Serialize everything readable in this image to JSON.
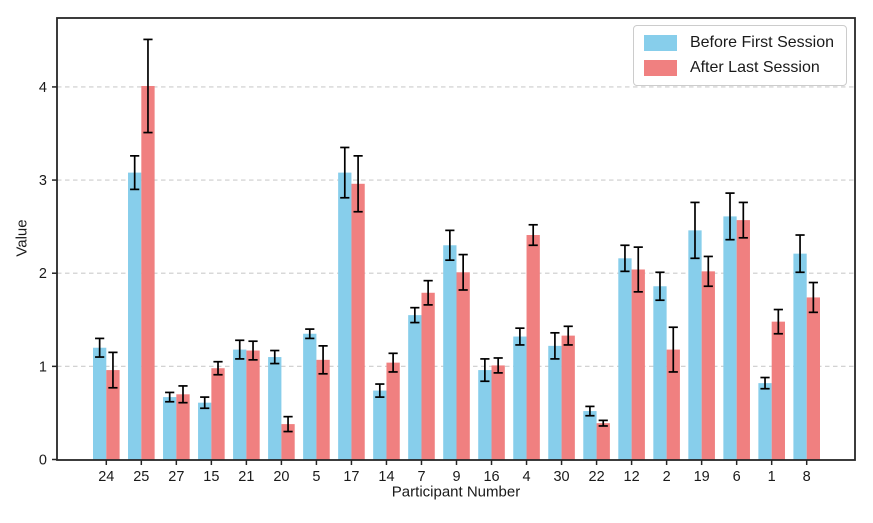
{
  "chart_data": {
    "type": "bar",
    "title": "",
    "xlabel": "Participant Number",
    "ylabel": "Value",
    "categories": [
      "24",
      "25",
      "27",
      "15",
      "21",
      "20",
      "5",
      "17",
      "14",
      "7",
      "9",
      "16",
      "4",
      "30",
      "22",
      "12",
      "2",
      "19",
      "6",
      "1",
      "8"
    ],
    "series": [
      {
        "name": "Before First Session",
        "color": "#87CEEB",
        "values": [
          1.2,
          3.08,
          0.67,
          0.61,
          1.18,
          1.1,
          1.35,
          3.08,
          0.74,
          1.55,
          2.3,
          0.96,
          1.32,
          1.22,
          0.52,
          2.16,
          1.86,
          2.46,
          2.61,
          0.82,
          2.21
        ],
        "errors": [
          0.1,
          0.18,
          0.05,
          0.06,
          0.1,
          0.07,
          0.05,
          0.27,
          0.07,
          0.08,
          0.16,
          0.12,
          0.09,
          0.14,
          0.05,
          0.14,
          0.15,
          0.3,
          0.25,
          0.06,
          0.2
        ]
      },
      {
        "name": "After Last Session",
        "color": "#F08080",
        "values": [
          0.96,
          4.01,
          0.7,
          0.98,
          1.17,
          0.38,
          1.07,
          2.96,
          1.04,
          1.79,
          2.01,
          1.01,
          2.41,
          1.33,
          0.39,
          2.04,
          1.18,
          2.02,
          2.57,
          1.48,
          1.74
        ],
        "errors": [
          0.19,
          0.5,
          0.09,
          0.07,
          0.1,
          0.08,
          0.15,
          0.3,
          0.1,
          0.13,
          0.19,
          0.08,
          0.11,
          0.1,
          0.03,
          0.24,
          0.24,
          0.16,
          0.19,
          0.13,
          0.16
        ]
      }
    ],
    "ylim": [
      0,
      4.74
    ],
    "yticks": [
      0,
      1,
      2,
      3,
      4
    ],
    "grid": "horizontal-dashed",
    "grid_color": "#cccccc",
    "axis_color": "#262626",
    "tick_label_color": "#1a1a1a",
    "error_bar_color": "#000000",
    "legend_position": "top-right"
  }
}
